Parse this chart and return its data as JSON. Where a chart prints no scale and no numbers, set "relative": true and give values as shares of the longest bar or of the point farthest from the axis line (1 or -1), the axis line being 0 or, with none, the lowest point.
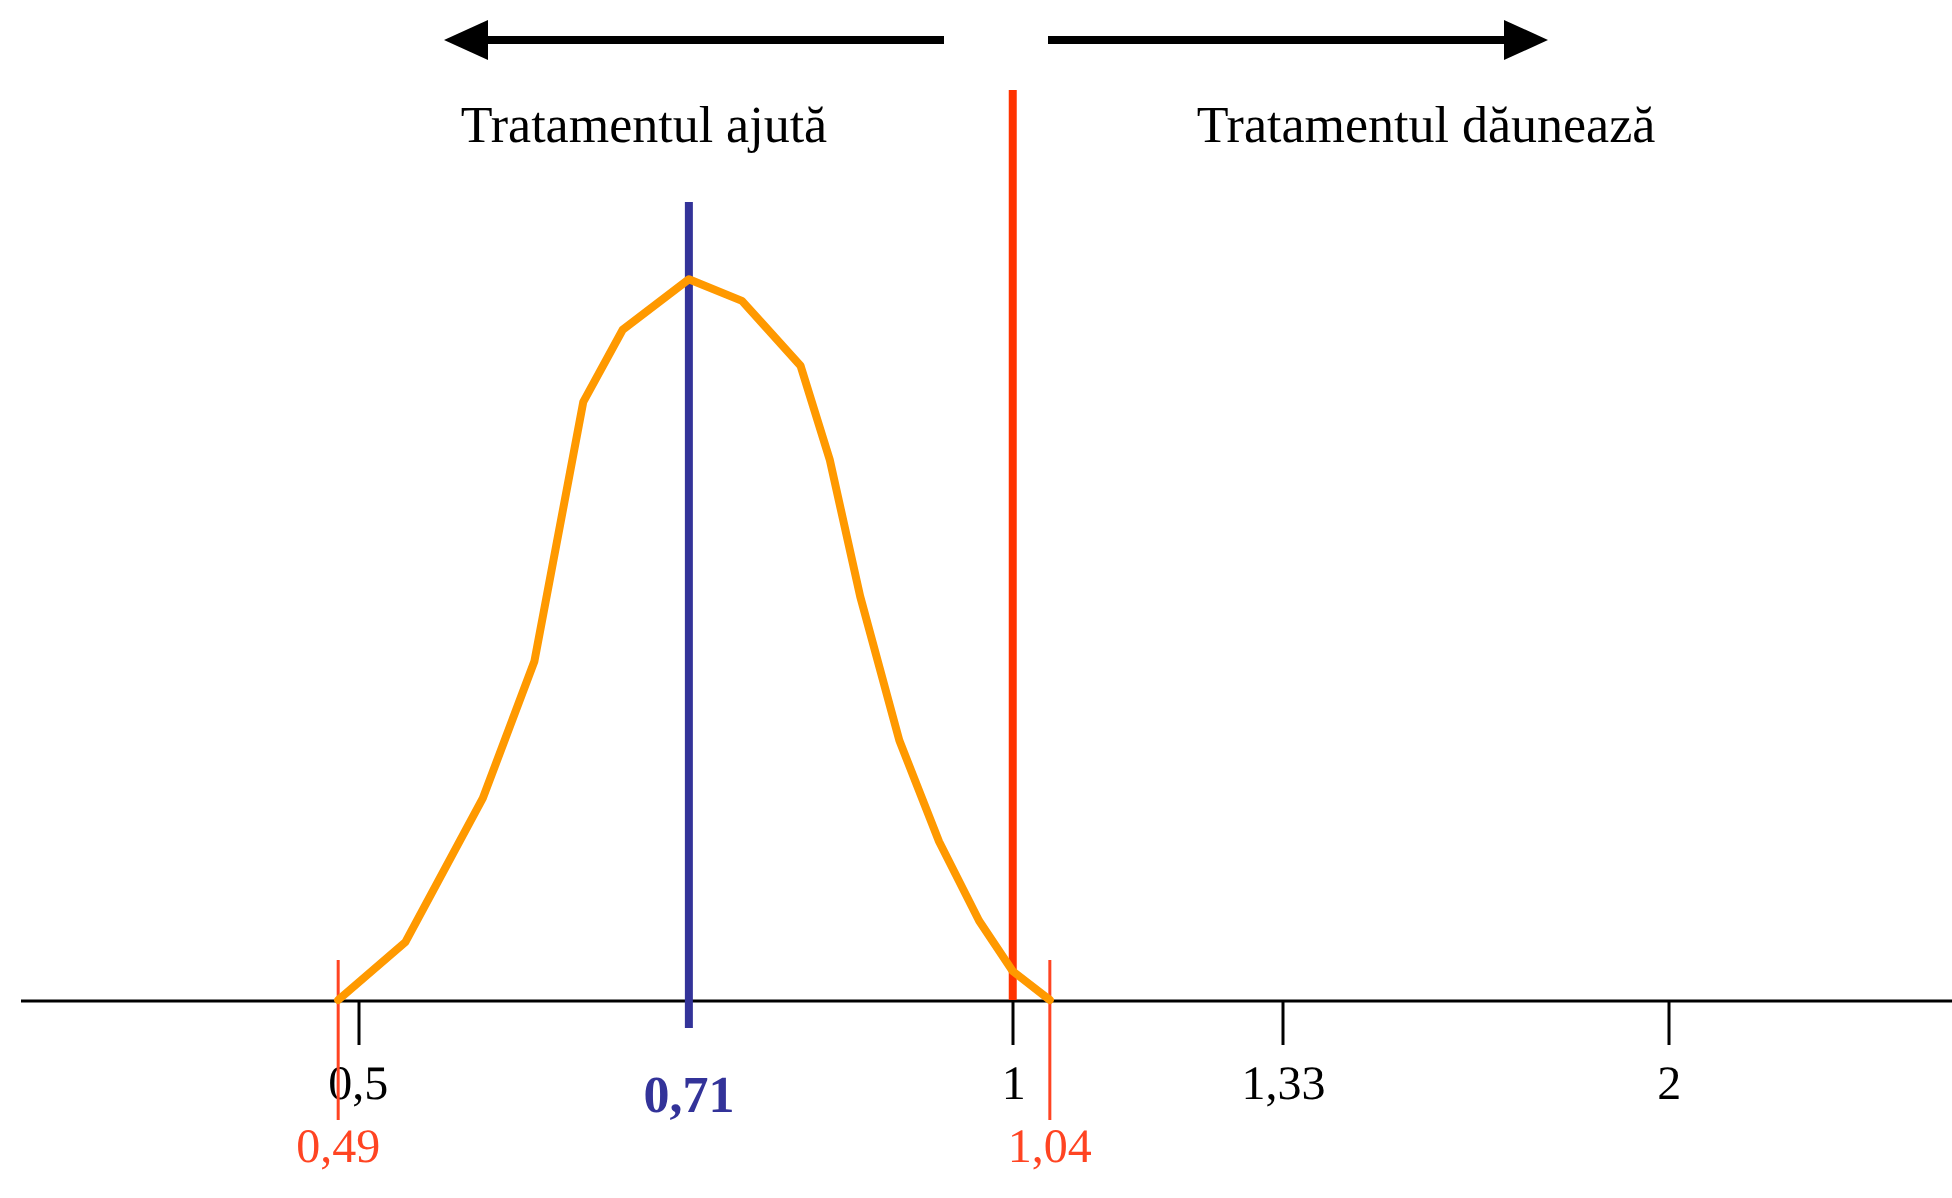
{
  "chart_data": {
    "type": "line",
    "relative": true,
    "log": "x",
    "x": [
      0.49,
      0.526,
      0.571,
      0.603,
      0.635,
      0.662,
      0.71,
      0.751,
      0.799,
      0.824,
      0.851,
      0.887,
      0.925,
      0.965,
      1.0,
      1.04
    ],
    "series": [
      {
        "color": "#ff9900",
        "values": [
          0,
          0.08,
          0.28,
          0.47,
          0.83,
          0.93,
          1,
          0.97,
          0.88,
          0.75,
          0.56,
          0.36,
          0.22,
          0.11,
          0.04,
          0
        ]
      }
    ],
    "xlim": [
      0.35,
      2.7
    ],
    "xticks": [
      {
        "value": 0.5,
        "label": "0,5"
      },
      {
        "value": 1,
        "label": "1"
      },
      {
        "value": 1.33,
        "label": "1,33"
      },
      {
        "value": 2,
        "label": "2"
      }
    ],
    "ref_lines": [
      {
        "axis": "x",
        "value": 1,
        "color": "#ff3300"
      },
      {
        "axis": "x",
        "value": 0.71,
        "label": "0,71",
        "color": "#333399"
      },
      {
        "axis": "x",
        "value": 0.49,
        "label": "0,49",
        "color": "#ff4422"
      },
      {
        "axis": "x",
        "value": 1.04,
        "label": "1,04",
        "color": "#ff4422"
      }
    ],
    "annotations": [
      "Tratamentul ajută",
      "Tratamentul dăunează"
    ],
    "marker": "none",
    "line_style": "solid",
    "grid": false
  }
}
